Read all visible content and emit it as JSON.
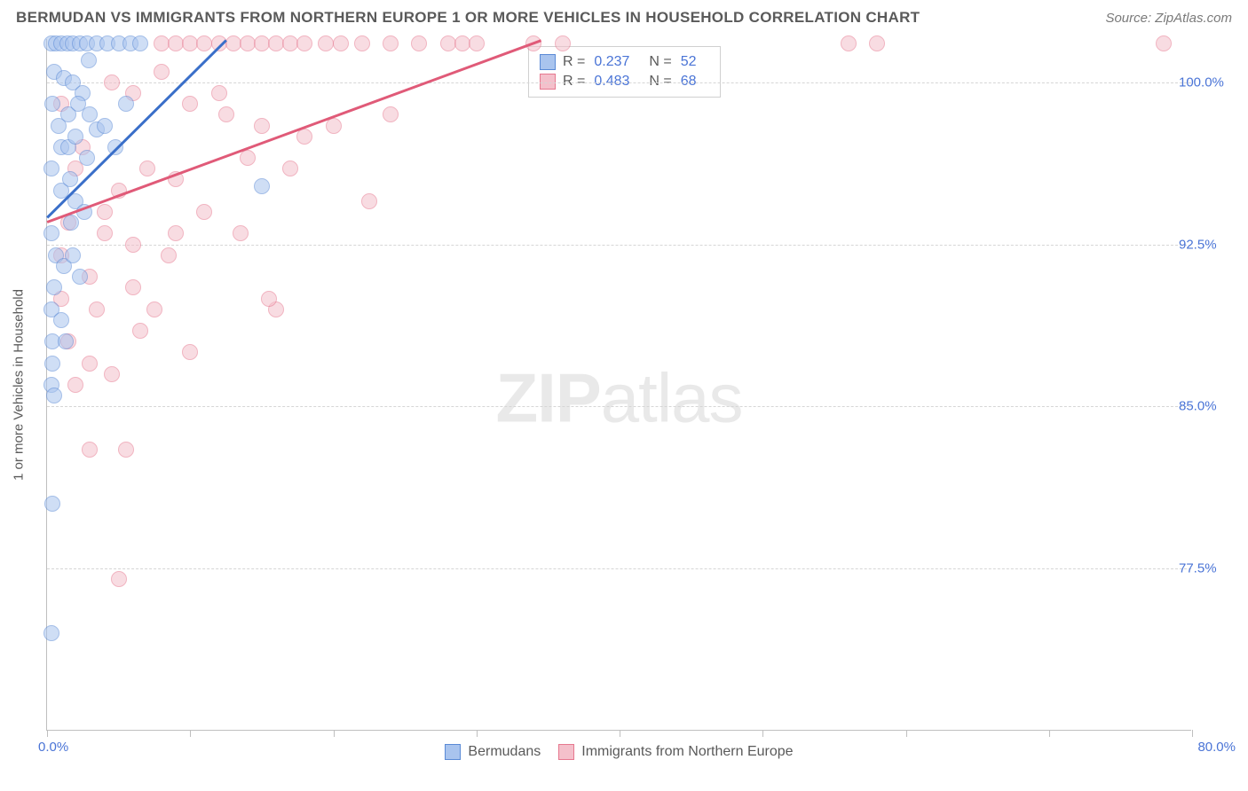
{
  "header": {
    "title": "BERMUDAN VS IMMIGRANTS FROM NORTHERN EUROPE 1 OR MORE VEHICLES IN HOUSEHOLD CORRELATION CHART",
    "source": "Source: ZipAtlas.com"
  },
  "watermark": {
    "zip": "ZIP",
    "atlas": "atlas"
  },
  "chart": {
    "type": "scatter",
    "xlabel": "",
    "ylabel": "1 or more Vehicles in Household",
    "xlim": [
      0,
      80
    ],
    "ylim": [
      70,
      102
    ],
    "xticks": [
      0,
      10,
      20,
      30,
      40,
      50,
      60,
      70,
      80
    ],
    "xtick_labels_shown": {
      "min": "0.0%",
      "max": "80.0%"
    },
    "yticks": [
      77.5,
      85.0,
      92.5,
      100.0
    ],
    "ytick_labels": [
      "77.5%",
      "85.0%",
      "92.5%",
      "100.0%"
    ],
    "background_color": "#ffffff",
    "grid_color": "#d6d6d6",
    "grid_dash": "3,3",
    "axis_color": "#bfbfbf",
    "axis_label_color": "#4a74d6",
    "marker_radius": 9,
    "marker_border_width": 1.5,
    "series": [
      {
        "name": "Bermudans",
        "fill_color": "#a9c4ee",
        "stroke_color": "#5a8ad6",
        "fill_opacity": 0.55,
        "correlation_r": 0.237,
        "n": 52,
        "trend_line": {
          "x1": 0,
          "y1": 93.8,
          "x2": 12.5,
          "y2": 102,
          "color": "#3a6fc9",
          "width": 2.5
        },
        "points": [
          [
            0.3,
            101.8
          ],
          [
            0.6,
            101.8
          ],
          [
            1.0,
            101.8
          ],
          [
            1.4,
            101.8
          ],
          [
            1.8,
            101.8
          ],
          [
            2.3,
            101.8
          ],
          [
            2.8,
            101.8
          ],
          [
            3.5,
            101.8
          ],
          [
            4.2,
            101.8
          ],
          [
            5.0,
            101.8
          ],
          [
            5.8,
            101.8
          ],
          [
            6.5,
            101.8
          ],
          [
            0.5,
            100.5
          ],
          [
            1.2,
            100.2
          ],
          [
            1.8,
            100.0
          ],
          [
            2.5,
            99.5
          ],
          [
            2.9,
            101.0
          ],
          [
            1.5,
            98.5
          ],
          [
            0.4,
            99.0
          ],
          [
            0.8,
            98.0
          ],
          [
            1.0,
            97.0
          ],
          [
            1.5,
            97.0
          ],
          [
            2.0,
            97.5
          ],
          [
            2.8,
            96.5
          ],
          [
            3.5,
            97.8
          ],
          [
            0.3,
            96.0
          ],
          [
            1.0,
            95.0
          ],
          [
            1.6,
            95.5
          ],
          [
            2.0,
            94.5
          ],
          [
            2.6,
            94.0
          ],
          [
            0.3,
            93.0
          ],
          [
            0.6,
            92.0
          ],
          [
            1.2,
            91.5
          ],
          [
            1.8,
            92.0
          ],
          [
            0.5,
            90.5
          ],
          [
            0.3,
            89.5
          ],
          [
            1.0,
            89.0
          ],
          [
            0.4,
            88.0
          ],
          [
            1.3,
            88.0
          ],
          [
            0.4,
            87.0
          ],
          [
            0.3,
            86.0
          ],
          [
            0.5,
            85.5
          ],
          [
            15.0,
            95.2
          ],
          [
            0.4,
            80.5
          ],
          [
            0.3,
            74.5
          ],
          [
            3.0,
            98.5
          ],
          [
            4.0,
            98.0
          ],
          [
            4.8,
            97.0
          ],
          [
            5.5,
            99.0
          ],
          [
            2.2,
            99.0
          ],
          [
            1.7,
            93.5
          ],
          [
            2.3,
            91.0
          ]
        ]
      },
      {
        "name": "Immigrants from Northern Europe",
        "fill_color": "#f4c0cb",
        "stroke_color": "#e6788f",
        "fill_opacity": 0.55,
        "correlation_r": 0.483,
        "n": 68,
        "trend_line": {
          "x1": 0,
          "y1": 93.6,
          "x2": 34.5,
          "y2": 102,
          "color": "#e05a78",
          "width": 2.5
        },
        "points": [
          [
            8,
            101.8
          ],
          [
            9,
            101.8
          ],
          [
            10,
            101.8
          ],
          [
            11,
            101.8
          ],
          [
            12,
            101.8
          ],
          [
            13,
            101.8
          ],
          [
            14,
            101.8
          ],
          [
            15,
            101.8
          ],
          [
            16,
            101.8
          ],
          [
            17,
            101.8
          ],
          [
            18,
            101.8
          ],
          [
            19.5,
            101.8
          ],
          [
            20.5,
            101.8
          ],
          [
            22,
            101.8
          ],
          [
            24,
            101.8
          ],
          [
            26,
            101.8
          ],
          [
            28,
            101.8
          ],
          [
            29,
            101.8
          ],
          [
            30,
            101.8
          ],
          [
            34,
            101.8
          ],
          [
            36,
            101.8
          ],
          [
            56,
            101.8
          ],
          [
            58,
            101.8
          ],
          [
            78,
            101.8
          ],
          [
            4.5,
            100.0
          ],
          [
            6.0,
            99.5
          ],
          [
            8.0,
            100.5
          ],
          [
            10.0,
            99.0
          ],
          [
            12.0,
            99.5
          ],
          [
            12.5,
            98.5
          ],
          [
            15.0,
            98.0
          ],
          [
            18.0,
            97.5
          ],
          [
            20.0,
            98.0
          ],
          [
            24.0,
            98.5
          ],
          [
            2.0,
            96.0
          ],
          [
            5.0,
            95.0
          ],
          [
            7.0,
            96.0
          ],
          [
            9.0,
            95.5
          ],
          [
            14.0,
            96.5
          ],
          [
            17.0,
            96.0
          ],
          [
            1.5,
            93.5
          ],
          [
            4.0,
            93.0
          ],
          [
            1.0,
            92.0
          ],
          [
            3.0,
            91.0
          ],
          [
            6.0,
            92.5
          ],
          [
            9.0,
            93.0
          ],
          [
            22.5,
            94.5
          ],
          [
            1.0,
            90.0
          ],
          [
            3.5,
            89.5
          ],
          [
            7.5,
            89.5
          ],
          [
            16.0,
            89.5
          ],
          [
            1.5,
            88.0
          ],
          [
            3.0,
            87.0
          ],
          [
            4.5,
            86.5
          ],
          [
            2.0,
            86.0
          ],
          [
            10.0,
            87.5
          ],
          [
            3.0,
            83.0
          ],
          [
            5.5,
            83.0
          ],
          [
            5.0,
            77.0
          ],
          [
            1.0,
            99.0
          ],
          [
            2.5,
            97.0
          ],
          [
            4.0,
            94.0
          ],
          [
            6.0,
            90.5
          ],
          [
            8.5,
            92.0
          ],
          [
            11.0,
            94.0
          ],
          [
            13.5,
            93.0
          ],
          [
            15.5,
            90.0
          ],
          [
            6.5,
            88.5
          ]
        ]
      }
    ],
    "legend_top": {
      "rows": [
        {
          "swatch": 0,
          "r_label": "R = ",
          "r_value": "0.237",
          "n_label": "N = ",
          "n_value": "52"
        },
        {
          "swatch": 1,
          "r_label": "R = ",
          "r_value": "0.483",
          "n_label": "N = ",
          "n_value": "68"
        }
      ]
    },
    "legend_bottom": {
      "items": [
        {
          "swatch": 0,
          "label": "Bermudans"
        },
        {
          "swatch": 1,
          "label": "Immigrants from Northern Europe"
        }
      ]
    }
  }
}
